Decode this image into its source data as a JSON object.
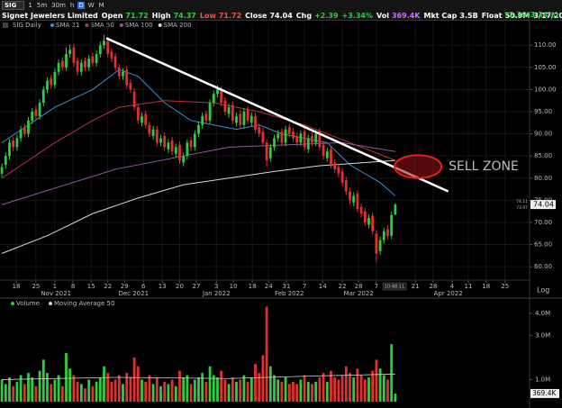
{
  "header": {
    "symbol": "SIG",
    "intervals": [
      "1",
      "5m",
      "30m",
      "h",
      "D",
      "W",
      "M"
    ],
    "active_interval": "D",
    "name": "Signet Jewelers Limited",
    "quote": [
      {
        "label": "Open",
        "value": "71.72",
        "color": "#2ecc40"
      },
      {
        "label": "High",
        "value": "74.37",
        "color": "#2ecc40"
      },
      {
        "label": "Low",
        "value": "71.72",
        "color": "#ff4d4d"
      },
      {
        "label": "Close",
        "value": "74.04",
        "color": "#ffffff"
      },
      {
        "label": "Chg",
        "value": "+2.39",
        "color": "#2ecc40"
      },
      {
        "value": "+3.34%",
        "color": "#2ecc40"
      },
      {
        "label": "Vol",
        "value": "369.4K",
        "color": "#d070ff"
      },
      {
        "label": "Mkt Cap",
        "value": "3.5B",
        "color": "#ffffff"
      },
      {
        "label": "Float",
        "value": "50.9M",
        "color": "#ffffff"
      }
    ],
    "date": "3/17/2022",
    "change": "↑2.39(3.34%)"
  },
  "chart_data": {
    "type": "candlestick",
    "title": "SIG Daily",
    "up_color": "#2ecc40",
    "down_color": "#e03030",
    "grid": true,
    "xlim": [
      -0.5,
      139.5
    ],
    "ylim": [
      58.2,
      113.5
    ],
    "yticks": [
      {
        "value": 60,
        "label": "60.00"
      },
      {
        "value": 65,
        "label": "65.00"
      },
      {
        "value": 70,
        "label": "70.00"
      },
      {
        "value": 75,
        "label": "75.00"
      },
      {
        "value": 80,
        "label": "80.00"
      },
      {
        "value": 85,
        "label": "85.00"
      },
      {
        "value": 90,
        "label": "90.00"
      },
      {
        "value": 95,
        "label": "95.00"
      },
      {
        "value": 100,
        "label": "100.00"
      },
      {
        "value": 105,
        "label": "105.00"
      },
      {
        "value": 110,
        "label": "110.00"
      }
    ],
    "xticks": [
      {
        "value": 3.8,
        "label": "18"
      },
      {
        "value": 9,
        "label": "25"
      },
      {
        "value": 14,
        "label": "1"
      },
      {
        "value": 18.8,
        "label": "8"
      },
      {
        "value": 23.6,
        "label": "15"
      },
      {
        "value": 28,
        "label": "22"
      },
      {
        "value": 32.4,
        "label": "29"
      },
      {
        "value": 37.4,
        "label": "6"
      },
      {
        "value": 42.4,
        "label": "13"
      },
      {
        "value": 47,
        "label": "20"
      },
      {
        "value": 51.4,
        "label": "27"
      },
      {
        "value": 56.7,
        "label": "3"
      },
      {
        "value": 61.2,
        "label": "10"
      },
      {
        "value": 66.2,
        "label": "18"
      },
      {
        "value": 70.5,
        "label": "24"
      },
      {
        "value": 75.2,
        "label": "31"
      },
      {
        "value": 80,
        "label": "7"
      },
      {
        "value": 84.8,
        "label": "14"
      },
      {
        "value": 90,
        "label": "22"
      },
      {
        "value": 94.3,
        "label": "28"
      },
      {
        "value": 99,
        "label": "7"
      },
      {
        "value": 109.3,
        "label": "21"
      },
      {
        "value": 114,
        "label": "28"
      },
      {
        "value": 119,
        "label": "4"
      },
      {
        "value": 123.3,
        "label": "11"
      },
      {
        "value": 128,
        "label": "18"
      },
      {
        "value": 133,
        "label": "25"
      }
    ],
    "xticks_months": [
      {
        "value": 14.3,
        "label": "Nov 2021"
      },
      {
        "value": 34.8,
        "label": "Dec 2021"
      },
      {
        "value": 56.7,
        "label": "Jan 2022"
      },
      {
        "value": 76,
        "label": "Feb 2022"
      },
      {
        "value": 94.3,
        "label": "Mar 2022"
      },
      {
        "value": 118,
        "label": "Apr 2022"
      }
    ],
    "open": [
      81,
      83,
      85,
      88.5,
      87,
      89,
      91.5,
      90,
      93,
      95.5,
      94,
      97,
      100,
      102.5,
      101,
      104,
      106.5,
      105,
      108,
      109.5,
      106.5,
      104,
      106.5,
      105,
      107.5,
      106,
      108,
      110,
      111,
      108.5,
      107.5,
      105,
      103,
      104.5,
      101.5,
      99.5,
      96,
      92.5,
      94.5,
      92,
      89.5,
      91,
      88,
      89.5,
      86.5,
      88.5,
      85.5,
      87.5,
      83.5,
      85,
      88.5,
      87,
      90,
      92,
      94.5,
      93,
      97,
      99,
      100,
      97.5,
      94.5,
      96.5,
      92.5,
      94.5,
      92,
      95.5,
      92.5,
      94,
      91.5,
      90.5,
      88,
      84.5,
      87,
      89,
      90.5,
      88,
      91.5,
      90.5,
      89.5,
      88,
      90.5,
      86.5,
      89.5,
      88,
      90.5,
      87.5,
      84.5,
      86.5,
      83.5,
      82.5,
      81.5,
      79.5,
      77,
      74.5,
      76.5,
      73.5,
      72.5,
      69.5,
      71.5,
      67.5,
      63.5,
      66,
      68.5,
      67,
      71.72
    ],
    "high": [
      83.3,
      85.8,
      88.8,
      89.3,
      89.8,
      91.8,
      92.3,
      93.8,
      95.8,
      96.3,
      97.8,
      100.8,
      102.8,
      103.3,
      104.8,
      106.8,
      107.3,
      109.5,
      110.2,
      110.3,
      107.3,
      106.8,
      107.3,
      107.8,
      108.3,
      108.8,
      110.8,
      112.3,
      111.8,
      109.3,
      108.3,
      105.8,
      104.8,
      105.3,
      102.3,
      100.3,
      96.8,
      94.8,
      95.3,
      92.8,
      91.8,
      91.8,
      89.8,
      90.3,
      88.8,
      89.3,
      87.8,
      88.3,
      85.8,
      88.8,
      89.3,
      90.8,
      92.8,
      94.8,
      95.3,
      97.8,
      99.8,
      101,
      100.8,
      98.3,
      96.8,
      97.3,
      94.8,
      95.3,
      95.8,
      96.3,
      94.8,
      94.8,
      92.3,
      91.3,
      88.8,
      87.8,
      89.8,
      90.8,
      91.3,
      91.8,
      92.3,
      91.3,
      90.3,
      90.8,
      91.3,
      89.8,
      90.3,
      90.8,
      91.3,
      88.3,
      86.8,
      87.3,
      84.3,
      83.3,
      82.3,
      80.3,
      77.8,
      76.8,
      77.3,
      74.3,
      73.3,
      71.8,
      72.3,
      68.3,
      66.8,
      68.8,
      69.3,
      72.4,
      74.37
    ],
    "low": [
      80.2,
      82.2,
      84.2,
      86.2,
      86.2,
      88.2,
      89.2,
      89.2,
      92.2,
      93.2,
      93.2,
      96.2,
      99.2,
      100.2,
      100.2,
      103.2,
      104.2,
      104.2,
      107.2,
      105.2,
      103.2,
      103.2,
      104.2,
      104.2,
      105.2,
      105.2,
      107.2,
      109.2,
      107.2,
      106.2,
      104.2,
      102.2,
      102.2,
      100.2,
      99.2,
      95.2,
      92.2,
      91.7,
      91.2,
      89.2,
      88.7,
      87.2,
      87.2,
      86.2,
      85.7,
      85.2,
      84.7,
      83.2,
      82.7,
      84.2,
      86.2,
      86.2,
      89.2,
      91.2,
      92.2,
      92.2,
      96.2,
      98.2,
      96.2,
      94.2,
      93.7,
      92.2,
      91.7,
      91.2,
      91.2,
      92.2,
      91.7,
      90.2,
      89.2,
      87.2,
      82.5,
      83.7,
      86.2,
      88.2,
      87.2,
      87.2,
      89.2,
      88.2,
      87.2,
      87.2,
      86.2,
      85.7,
      87.2,
      87.2,
      86.2,
      84.2,
      83.7,
      82.2,
      81.2,
      80.2,
      78.2,
      76.2,
      74.2,
      73.7,
      72.2,
      71.2,
      69.2,
      68.7,
      67.2,
      61,
      62.7,
      65.2,
      66.2,
      66.2,
      71.72
    ],
    "close": [
      82.5,
      85,
      88,
      87,
      89,
      91,
      90,
      93,
      95,
      94,
      97,
      100,
      102,
      101,
      104,
      106,
      105,
      108,
      109,
      106,
      104,
      106,
      105,
      107,
      106,
      108,
      110,
      111,
      108,
      107,
      105,
      103,
      104,
      101,
      100,
      96,
      93,
      94,
      92,
      90,
      91,
      88,
      89,
      87,
      88,
      86,
      87,
      84,
      85,
      88,
      87,
      90,
      92,
      94,
      93,
      97,
      99,
      100,
      97,
      95,
      96,
      93,
      94,
      92,
      95,
      93,
      94,
      91,
      90,
      88,
      84,
      87,
      89,
      90,
      88,
      91,
      90,
      89,
      88,
      90,
      87,
      89,
      88,
      90,
      87,
      85,
      86,
      83,
      82,
      81,
      79,
      77,
      75,
      76,
      73,
      72,
      70,
      71,
      68,
      63,
      66,
      68,
      67,
      71.65,
      74.04
    ],
    "overlays": [
      {
        "name": "SMA 21",
        "color": "#3a8fd4",
        "x": [
          0,
          14,
          24,
          31,
          36,
          43,
          50,
          56,
          62,
          68,
          74,
          80,
          86,
          92,
          100,
          104
        ],
        "values": [
          88,
          96,
          100,
          104.5,
          103,
          97,
          93,
          92,
          91,
          92,
          90,
          89,
          88,
          83,
          79,
          76
        ]
      },
      {
        "name": "SMA 50",
        "color": "#b8323a",
        "x": [
          0,
          14,
          24,
          31,
          43,
          56,
          68,
          80,
          92,
          104
        ],
        "values": [
          80,
          88,
          93,
          96,
          97.5,
          97,
          95,
          92,
          88,
          84
        ]
      },
      {
        "name": "SMA 100",
        "color": "#8e5a9e",
        "x": [
          0,
          30,
          60,
          90,
          104
        ],
        "values": [
          74,
          82,
          87,
          88,
          86
        ]
      },
      {
        "name": "SMA 200",
        "color": "#d8d8d8",
        "x": [
          0,
          12,
          24,
          36,
          48,
          60,
          72,
          84,
          96,
          104
        ],
        "values": [
          63,
          67,
          72,
          75.5,
          78.5,
          80,
          81.5,
          82.8,
          83.5,
          84
        ]
      }
    ],
    "trendline": {
      "color": "#ffffff",
      "x": [
        27.6,
        118
      ],
      "values": [
        111.6,
        77
      ]
    },
    "sell_zone": {
      "label": "SELL ZONE",
      "x": 110,
      "y": 82.6,
      "rx": 6.2,
      "ry": 2.6,
      "color": "#e02020"
    },
    "last_price": 74.04,
    "price_tags": [
      74.11,
      73.97
    ],
    "countdown": "10:48:11",
    "scale_button": "Log",
    "volume": {
      "title": "Volume",
      "ylim": [
        0,
        4.4
      ],
      "yticks": [
        {
          "value": 1,
          "label": "1.0M"
        },
        {
          "value": 3,
          "label": "3.0M"
        },
        {
          "value": 4,
          "label": "4.0M"
        }
      ],
      "values": [
        1.0,
        0.8,
        1.1,
        0.7,
        0.9,
        1.2,
        0.8,
        1.3,
        1.1,
        0.7,
        1.4,
        1.9,
        1.3,
        0.8,
        1.0,
        1.2,
        0.7,
        2.2,
        1.5,
        1.2,
        0.9,
        0.8,
        0.6,
        1.0,
        0.7,
        0.9,
        1.1,
        1.6,
        1.3,
        0.9,
        1.0,
        1.2,
        0.8,
        1.3,
        1.1,
        2.0,
        1.6,
        1.0,
        0.9,
        1.2,
        0.8,
        1.1,
        0.7,
        0.9,
        0.8,
        1.0,
        0.7,
        1.4,
        1.1,
        1.2,
        0.8,
        1.0,
        1.1,
        1.3,
        0.9,
        1.6,
        1.2,
        1.1,
        1.4,
        1.0,
        0.8,
        1.1,
        0.9,
        1.0,
        1.2,
        0.9,
        1.1,
        1.7,
        1.3,
        2.1,
        4.3,
        1.6,
        1.2,
        1.0,
        0.9,
        1.1,
        0.8,
        0.9,
        0.8,
        1.0,
        1.2,
        0.9,
        0.8,
        0.9,
        1.1,
        1.3,
        0.9,
        1.4,
        1.1,
        1.0,
        1.2,
        1.6,
        1.3,
        1.1,
        1.5,
        1.2,
        1.0,
        1.1,
        1.4,
        1.9,
        1.5,
        1.2,
        1.0,
        2.6,
        0.3694
      ],
      "last_value_label": "369.4K",
      "ma": {
        "name": "Moving Average 50",
        "color": "#d0d0d0",
        "x": [
          0,
          30,
          60,
          80,
          104
        ],
        "values": [
          1.0,
          1.1,
          1.05,
          1.15,
          1.25
        ]
      }
    }
  }
}
